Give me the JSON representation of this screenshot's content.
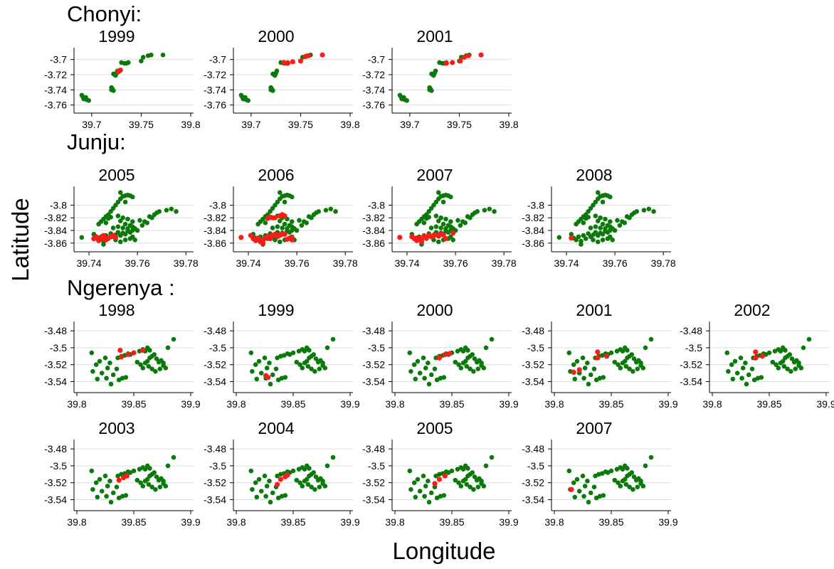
{
  "figure": {
    "ylabel": "Latitude",
    "xlabel": "Longitude",
    "colors": {
      "case": "#ff1a1a",
      "control": "#0b7a0b",
      "gridline": "#d6dede"
    }
  },
  "chart_data": [
    {
      "group": "Chonyi:",
      "type": "scatter",
      "xlim": [
        39.685,
        39.8
      ],
      "ylim": [
        -3.765,
        -3.69
      ],
      "xticks": [
        39.7,
        39.75,
        39.8
      ],
      "yticks": [
        -3.7,
        -3.72,
        -3.74,
        -3.76
      ],
      "x_tick_labels": [
        "39.7",
        "39.75",
        "39.8"
      ],
      "y_tick_labels": [
        "-3.7",
        "-3.72",
        "-3.74",
        "-3.76"
      ],
      "series": [
        {
          "key": "control",
          "name": ""
        },
        {
          "key": "case",
          "name": ""
        }
      ],
      "base_points": [
        [
          39.691,
          -3.749
        ],
        [
          39.693,
          -3.751
        ],
        [
          39.692,
          -3.752
        ],
        [
          39.695,
          -3.753
        ],
        [
          39.697,
          -3.754
        ],
        [
          39.69,
          -3.747
        ],
        [
          39.694,
          -3.75
        ],
        [
          39.72,
          -3.737
        ],
        [
          39.721,
          -3.739
        ],
        [
          39.722,
          -3.741
        ],
        [
          39.72,
          -3.74
        ],
        [
          39.722,
          -3.719
        ],
        [
          39.724,
          -3.721
        ],
        [
          39.725,
          -3.718
        ],
        [
          39.726,
          -3.715
        ],
        [
          39.73,
          -3.704
        ],
        [
          39.733,
          -3.705
        ],
        [
          39.735,
          -3.705
        ],
        [
          39.737,
          -3.704
        ],
        [
          39.75,
          -3.702
        ],
        [
          39.752,
          -3.697
        ],
        [
          39.757,
          -3.695
        ],
        [
          39.76,
          -3.694
        ],
        [
          39.772,
          -3.694
        ]
      ],
      "panels": [
        {
          "year": "1999",
          "case_points": [
            [
              39.727,
              -3.716
            ],
            [
              39.729,
              -3.714
            ]
          ]
        },
        {
          "year": "2000",
          "case_points": [
            [
              39.733,
              -3.704
            ],
            [
              39.737,
              -3.705
            ],
            [
              39.742,
              -3.703
            ],
            [
              39.75,
              -3.702
            ],
            [
              39.755,
              -3.696
            ],
            [
              39.758,
              -3.695
            ],
            [
              39.772,
              -3.694
            ]
          ]
        },
        {
          "year": "2001",
          "case_points": [
            [
              39.737,
              -3.705
            ],
            [
              39.743,
              -3.704
            ],
            [
              39.751,
              -3.702
            ],
            [
              39.755,
              -3.697
            ],
            [
              39.759,
              -3.695
            ],
            [
              39.772,
              -3.694
            ]
          ]
        }
      ]
    },
    {
      "group": "Junju:",
      "type": "scatter",
      "xlim": [
        39.735,
        39.782
      ],
      "ylim": [
        -3.867,
        -3.777
      ],
      "xticks": [
        39.74,
        39.76,
        39.78
      ],
      "yticks": [
        -3.8,
        -3.82,
        -3.84,
        -3.86
      ],
      "x_tick_labels": [
        "39.74",
        "39.76",
        "39.78"
      ],
      "y_tick_labels": [
        "-3.8",
        "-3.82",
        "-3.84",
        "-3.86"
      ],
      "series": [
        {
          "key": "control",
          "name": ""
        },
        {
          "key": "case",
          "name": ""
        }
      ],
      "base_points": [
        [
          39.737,
          -3.851
        ],
        [
          39.742,
          -3.846
        ],
        [
          39.743,
          -3.852
        ],
        [
          39.744,
          -3.855
        ],
        [
          39.745,
          -3.85
        ],
        [
          39.746,
          -3.857
        ],
        [
          39.746,
          -3.862
        ],
        [
          39.747,
          -3.848
        ],
        [
          39.748,
          -3.853
        ],
        [
          39.749,
          -3.845
        ],
        [
          39.75,
          -3.85
        ],
        [
          39.751,
          -3.847
        ],
        [
          39.752,
          -3.843
        ],
        [
          39.753,
          -3.848
        ],
        [
          39.754,
          -3.844
        ],
        [
          39.755,
          -3.846
        ],
        [
          39.756,
          -3.841
        ],
        [
          39.757,
          -3.843
        ],
        [
          39.758,
          -3.84
        ],
        [
          39.759,
          -3.837
        ],
        [
          39.76,
          -3.84
        ],
        [
          39.744,
          -3.83
        ],
        [
          39.745,
          -3.826
        ],
        [
          39.746,
          -3.822
        ],
        [
          39.747,
          -3.818
        ],
        [
          39.748,
          -3.815
        ],
        [
          39.749,
          -3.81
        ],
        [
          39.75,
          -3.805
        ],
        [
          39.751,
          -3.8
        ],
        [
          39.752,
          -3.795
        ],
        [
          39.753,
          -3.79
        ],
        [
          39.754,
          -3.786
        ],
        [
          39.755,
          -3.785
        ],
        [
          39.756,
          -3.784
        ],
        [
          39.757,
          -3.785
        ],
        [
          39.758,
          -3.787
        ],
        [
          39.747,
          -3.828
        ],
        [
          39.748,
          -3.821
        ],
        [
          39.749,
          -3.819
        ],
        [
          39.752,
          -3.817
        ],
        [
          39.753,
          -3.825
        ],
        [
          39.754,
          -3.82
        ],
        [
          39.755,
          -3.83
        ],
        [
          39.756,
          -3.822
        ],
        [
          39.757,
          -3.832
        ],
        [
          39.758,
          -3.826
        ],
        [
          39.75,
          -3.836
        ],
        [
          39.752,
          -3.834
        ],
        [
          39.754,
          -3.836
        ],
        [
          39.756,
          -3.837
        ],
        [
          39.758,
          -3.834
        ],
        [
          39.751,
          -3.855
        ],
        [
          39.753,
          -3.858
        ],
        [
          39.755,
          -3.855
        ],
        [
          39.757,
          -3.853
        ],
        [
          39.758,
          -3.85
        ],
        [
          39.759,
          -3.855
        ],
        [
          39.761,
          -3.824
        ],
        [
          39.762,
          -3.832
        ],
        [
          39.763,
          -3.826
        ],
        [
          39.764,
          -3.828
        ],
        [
          39.765,
          -3.818
        ],
        [
          39.766,
          -3.82
        ],
        [
          39.767,
          -3.815
        ],
        [
          39.768,
          -3.812
        ],
        [
          39.769,
          -3.81
        ],
        [
          39.772,
          -3.808
        ],
        [
          39.774,
          -3.806
        ],
        [
          39.776,
          -3.81
        ],
        [
          39.755,
          -3.795
        ],
        [
          39.753,
          -3.78
        ]
      ],
      "panels": [
        {
          "year": "2005",
          "case_points": [
            [
              39.742,
              -3.853
            ],
            [
              39.743,
              -3.85
            ],
            [
              39.744,
              -3.856
            ],
            [
              39.745,
              -3.852
            ],
            [
              39.746,
              -3.848
            ],
            [
              39.747,
              -3.855
            ],
            [
              39.748,
              -3.852
            ],
            [
              39.749,
              -3.85
            ],
            [
              39.75,
              -3.848
            ],
            [
              39.751,
              -3.851
            ],
            [
              39.744,
              -3.853
            ],
            [
              39.746,
              -3.853
            ]
          ]
        },
        {
          "year": "2006",
          "case_points": [
            [
              39.737,
              -3.851
            ],
            [
              39.741,
              -3.848
            ],
            [
              39.742,
              -3.853
            ],
            [
              39.743,
              -3.856
            ],
            [
              39.744,
              -3.852
            ],
            [
              39.745,
              -3.858
            ],
            [
              39.746,
              -3.86
            ],
            [
              39.746,
              -3.855
            ],
            [
              39.747,
              -3.852
            ],
            [
              39.748,
              -3.849
            ],
            [
              39.749,
              -3.853
            ],
            [
              39.75,
              -3.848
            ],
            [
              39.751,
              -3.846
            ],
            [
              39.752,
              -3.85
            ],
            [
              39.753,
              -3.847
            ],
            [
              39.754,
              -3.846
            ],
            [
              39.755,
              -3.846
            ],
            [
              39.748,
              -3.821
            ],
            [
              39.749,
              -3.819
            ],
            [
              39.75,
              -3.82
            ],
            [
              39.751,
              -3.82
            ],
            [
              39.753,
              -3.817
            ],
            [
              39.754,
              -3.815
            ],
            [
              39.755,
              -3.817
            ],
            [
              39.756,
              -3.854
            ],
            [
              39.757,
              -3.852
            ],
            [
              39.758,
              -3.851
            ],
            [
              39.758,
              -3.855
            ]
          ]
        },
        {
          "year": "2007",
          "case_points": [
            [
              39.737,
              -3.851
            ],
            [
              39.742,
              -3.85
            ],
            [
              39.743,
              -3.853
            ],
            [
              39.744,
              -3.856
            ],
            [
              39.745,
              -3.852
            ],
            [
              39.746,
              -3.858
            ],
            [
              39.747,
              -3.849
            ],
            [
              39.748,
              -3.852
            ],
            [
              39.749,
              -3.848
            ],
            [
              39.75,
              -3.85
            ],
            [
              39.751,
              -3.848
            ],
            [
              39.752,
              -3.847
            ],
            [
              39.753,
              -3.849
            ],
            [
              39.754,
              -3.846
            ],
            [
              39.755,
              -3.847
            ],
            [
              39.756,
              -3.853
            ],
            [
              39.759,
              -3.844
            ],
            [
              39.744,
              -3.852
            ],
            [
              39.746,
              -3.855
            ]
          ]
        },
        {
          "year": "2008",
          "case_points": [
            [
              39.742,
              -3.852
            ]
          ]
        }
      ]
    },
    {
      "group": "Ngerenya :",
      "type": "scatter",
      "xlim": [
        39.8,
        39.9
      ],
      "ylim": [
        -3.548,
        -3.474
      ],
      "xticks": [
        39.8,
        39.85,
        39.9
      ],
      "yticks": [
        -3.48,
        -3.5,
        -3.52,
        -3.54
      ],
      "x_tick_labels": [
        "39.8",
        "39.85",
        "39.9"
      ],
      "y_tick_labels": [
        "-3.48",
        "-3.5",
        "-3.52",
        "-3.54"
      ],
      "series": [
        {
          "key": "control",
          "name": ""
        },
        {
          "key": "case",
          "name": ""
        }
      ],
      "base_points": [
        [
          39.813,
          -3.506
        ],
        [
          39.817,
          -3.52
        ],
        [
          39.814,
          -3.528
        ],
        [
          39.82,
          -3.516
        ],
        [
          39.822,
          -3.53
        ],
        [
          39.818,
          -3.537
        ],
        [
          39.825,
          -3.512
        ],
        [
          39.827,
          -3.524
        ],
        [
          39.826,
          -3.536
        ],
        [
          39.83,
          -3.543
        ],
        [
          39.829,
          -3.518
        ],
        [
          39.832,
          -3.532
        ],
        [
          39.835,
          -3.525
        ],
        [
          39.837,
          -3.538
        ],
        [
          39.84,
          -3.536
        ],
        [
          39.843,
          -3.535
        ],
        [
          39.836,
          -3.512
        ],
        [
          39.839,
          -3.51
        ],
        [
          39.842,
          -3.509
        ],
        [
          39.845,
          -3.507
        ],
        [
          39.847,
          -3.508
        ],
        [
          39.85,
          -3.506
        ],
        [
          39.855,
          -3.504
        ],
        [
          39.858,
          -3.502
        ],
        [
          39.86,
          -3.504
        ],
        [
          39.853,
          -3.517
        ],
        [
          39.856,
          -3.52
        ],
        [
          39.858,
          -3.524
        ],
        [
          39.86,
          -3.518
        ],
        [
          39.862,
          -3.516
        ],
        [
          39.864,
          -3.512
        ],
        [
          39.866,
          -3.51
        ],
        [
          39.868,
          -3.508
        ],
        [
          39.87,
          -3.513
        ],
        [
          39.872,
          -3.517
        ],
        [
          39.874,
          -3.515
        ],
        [
          39.876,
          -3.521
        ],
        [
          39.878,
          -3.524
        ],
        [
          39.863,
          -3.522
        ],
        [
          39.866,
          -3.525
        ],
        [
          39.869,
          -3.528
        ],
        [
          39.873,
          -3.525
        ],
        [
          39.876,
          -3.518
        ],
        [
          39.88,
          -3.5
        ],
        [
          39.885,
          -3.49
        ],
        [
          39.864,
          -3.503
        ],
        [
          39.862,
          -3.5
        ]
      ],
      "panels": [
        {
          "year": "1998",
          "case_points": [
            [
              39.838,
              -3.503
            ],
            [
              39.839,
              -3.511
            ],
            [
              39.845,
              -3.508
            ],
            [
              39.85,
              -3.506
            ],
            [
              39.858,
              -3.503
            ]
          ]
        },
        {
          "year": "1999",
          "case_points": [
            [
              39.826,
              -3.533
            ],
            [
              39.828,
              -3.535
            ]
          ]
        },
        {
          "year": "2000",
          "case_points": [
            [
              39.839,
              -3.512
            ],
            [
              39.844,
              -3.508
            ],
            [
              39.848,
              -3.507
            ]
          ]
        },
        {
          "year": "2001",
          "case_points": [
            [
              39.817,
              -3.529
            ],
            [
              39.822,
              -3.526
            ],
            [
              39.838,
              -3.505
            ],
            [
              39.838,
              -3.512
            ],
            [
              39.846,
              -3.51
            ]
          ]
        },
        {
          "year": "2002",
          "case_points": [
            [
              39.838,
              -3.505
            ],
            [
              39.838,
              -3.512
            ],
            [
              39.844,
              -3.51
            ]
          ]
        },
        {
          "year": "2003",
          "case_points": [
            [
              39.837,
              -3.517
            ],
            [
              39.841,
              -3.514
            ],
            [
              39.844,
              -3.512
            ]
          ]
        },
        {
          "year": "2004",
          "case_points": [
            [
              39.836,
              -3.522
            ],
            [
              39.839,
              -3.516
            ],
            [
              39.843,
              -3.513
            ],
            [
              39.845,
              -3.511
            ]
          ]
        },
        {
          "year": "2005",
          "case_points": [
            [
              39.835,
              -3.521
            ],
            [
              39.839,
              -3.516
            ],
            [
              39.844,
              -3.512
            ]
          ]
        },
        {
          "year": "2007",
          "case_points": [
            [
              39.815,
              -3.528
            ]
          ]
        }
      ]
    }
  ]
}
